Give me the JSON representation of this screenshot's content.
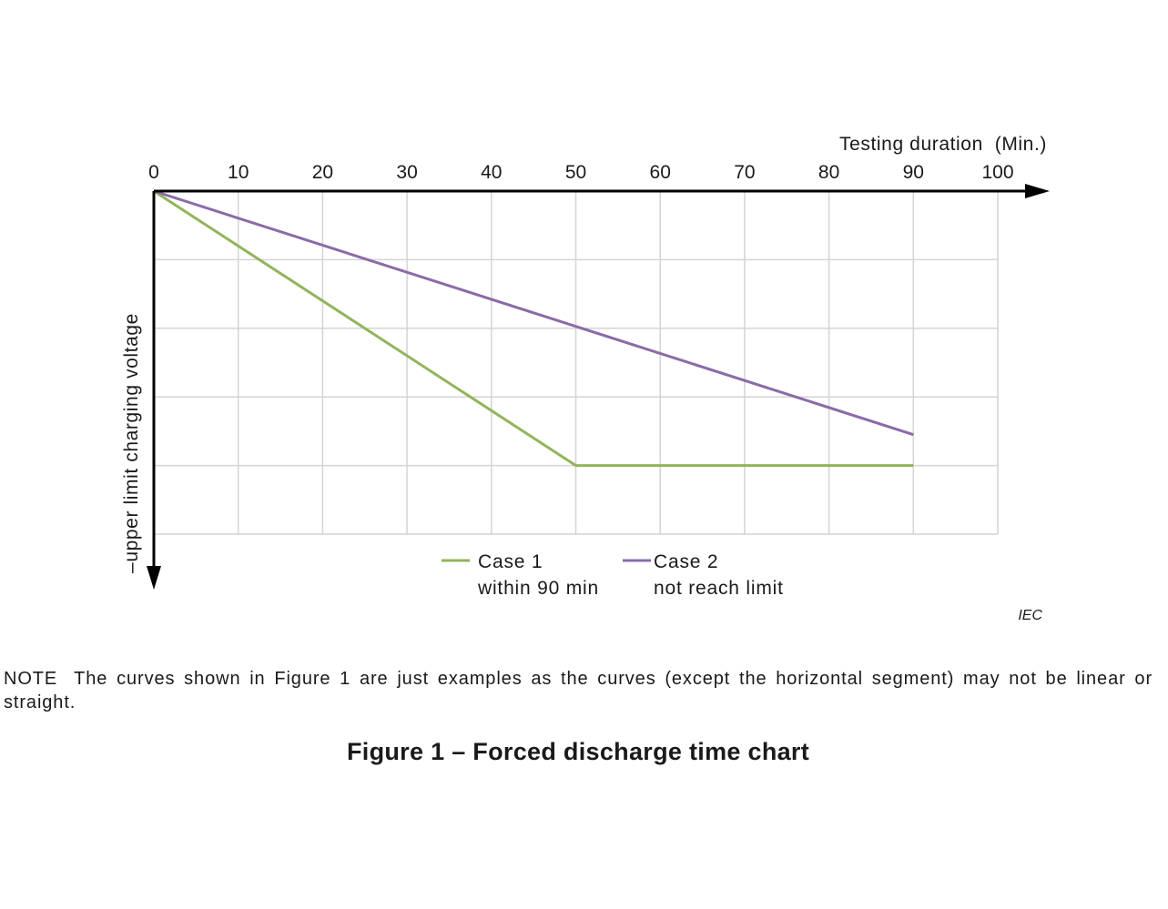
{
  "chart_data": {
    "type": "line",
    "xlabel": "Testing duration  (Min.)",
    "ylabel": "–upper limit charging voltage",
    "x_ticks": [
      0,
      10,
      20,
      30,
      40,
      50,
      60,
      70,
      80,
      90,
      100
    ],
    "xlim": [
      0,
      100
    ],
    "ylim": [
      0,
      5
    ],
    "y_direction": "downward",
    "grid": true,
    "legend_position": "bottom-center",
    "series": [
      {
        "name": "Case 1",
        "description": "within 90 min",
        "color": "#92b55c",
        "x": [
          0,
          50,
          90
        ],
        "y": [
          0,
          4,
          4
        ]
      },
      {
        "name": "Case 2",
        "description": "not reach limit",
        "color": "#8a6ba8",
        "x": [
          0,
          90
        ],
        "y": [
          0,
          3.55
        ]
      }
    ],
    "annotation": "IEC"
  },
  "note": {
    "label": "NOTE",
    "text": "The curves shown in Figure 1 are just examples as the curves (except the horizontal segment) may not be linear or straight."
  },
  "caption": "Figure 1 – Forced discharge time chart",
  "colors": {
    "axis": "#000000",
    "grid": "#d4d4d4"
  }
}
